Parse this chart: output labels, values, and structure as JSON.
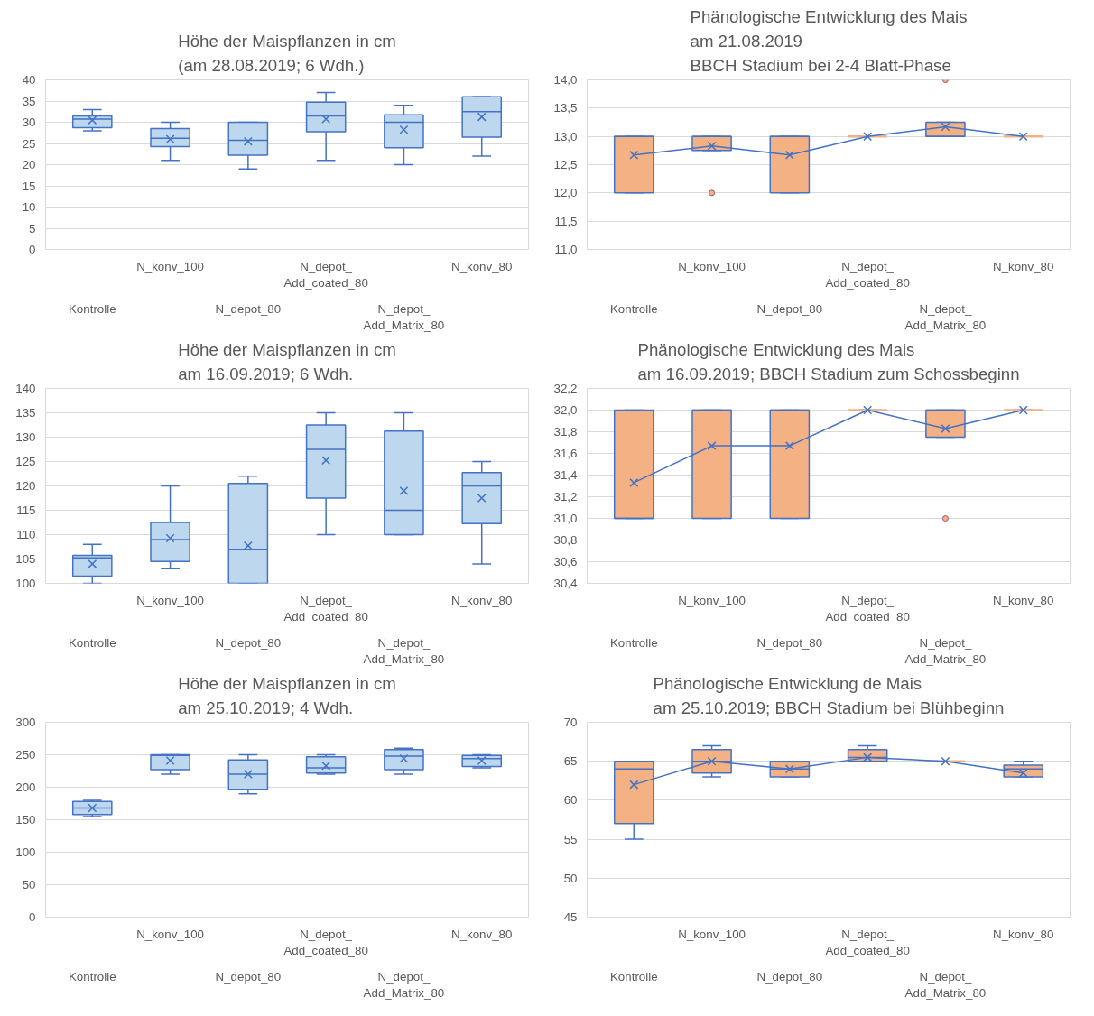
{
  "chart_data": [
    {
      "type": "box",
      "title": "Höhe der Maispflanzen in cm\n(am 28.08.2019;  6 Wdh.)",
      "categories": [
        "Kontrolle",
        "N_konv_100",
        "N_depot_80",
        "N_depot_\nAdd_coated_80",
        "N_depot_\nAdd_Matrix_80",
        "N_konv_80"
      ],
      "ylim": [
        0,
        40
      ],
      "yticks": [
        0,
        5,
        10,
        15,
        20,
        25,
        30,
        35,
        40
      ],
      "grid": "y",
      "marker": "cross",
      "series": [
        {
          "type": "box",
          "color": "#bdd7ee",
          "boxes": [
            {
              "low": 28,
              "q1": 28.75,
              "median": 30.75,
              "q3": 31.5,
              "high": 33,
              "mean": 30.5
            },
            {
              "low": 21,
              "q1": 24.25,
              "median": 26.25,
              "q3": 28.5,
              "high": 30,
              "mean": 26
            },
            {
              "low": 19,
              "q1": 22.25,
              "median": 25.75,
              "q3": 30,
              "high": 30,
              "mean": 25.5
            },
            {
              "low": 21,
              "q1": 27.75,
              "median": 31.5,
              "q3": 34.75,
              "high": 37,
              "mean": 30.75
            },
            {
              "low": 20,
              "q1": 24,
              "median": 30,
              "q3": 31.75,
              "high": 34,
              "mean": 28.25
            },
            {
              "low": 22,
              "q1": 26.5,
              "median": 32.5,
              "q3": 36,
              "high": 36,
              "mean": 31.25
            }
          ]
        }
      ]
    },
    {
      "type": "box",
      "title": "Phänologische Entwicklung des Mais\nam 21.08.2019\nBBCH Stadium bei 2-4 Blatt-Phase",
      "categories": [
        "Kontrolle",
        "N_konv_100",
        "N_depot_80",
        "N_depot_\nAdd_coated_80",
        "N_depot_\nAdd_Matrix_80",
        "N_konv_80"
      ],
      "ylim": [
        11,
        14
      ],
      "yticks": [
        {
          "value": 11,
          "label": "11,0"
        },
        {
          "value": 11.5,
          "label": "11,5"
        },
        {
          "value": 12,
          "label": "12,0"
        },
        {
          "value": 12.5,
          "label": "12,5"
        },
        {
          "value": 13,
          "label": "13,0"
        },
        {
          "value": 13.5,
          "label": "13,5"
        },
        {
          "value": 14,
          "label": "14,0"
        }
      ],
      "grid": "y",
      "marker": "cross",
      "series": [
        {
          "type": "box",
          "color": "#f4b183",
          "boxes": [
            {
              "low": 12,
              "q1": 12,
              "median": 13,
              "q3": 13,
              "high": 13,
              "mean": 12.67
            },
            {
              "low": 12.75,
              "q1": 12.75,
              "median": 13,
              "q3": 13,
              "high": 13,
              "mean": 12.83,
              "outliers": [
                12
              ]
            },
            {
              "low": 12,
              "q1": 12,
              "median": 13,
              "q3": 13,
              "high": 13,
              "mean": 12.67
            },
            {
              "low": 13,
              "q1": 13,
              "median": 13,
              "q3": 13,
              "high": 13,
              "mean": 13
            },
            {
              "low": 13,
              "q1": 13,
              "median": 13,
              "q3": 13.25,
              "high": 13.25,
              "mean": 13.17,
              "outliers": [
                14
              ]
            },
            {
              "low": 13,
              "q1": 13,
              "median": 13,
              "q3": 13,
              "high": 13,
              "mean": 13
            }
          ]
        },
        {
          "type": "line",
          "color": "#4472c4",
          "marker": "none",
          "values": [
            12.67,
            12.83,
            12.67,
            13,
            13.17,
            13
          ]
        }
      ]
    },
    {
      "type": "box",
      "title": "Höhe der Maispflanzen in cm\nam 16.09.2019; 6 Wdh.",
      "categories": [
        "Kontrolle",
        "N_konv_100",
        "N_depot_80",
        "N_depot_\nAdd_coated_80",
        "N_depot_\nAdd_Matrix_80",
        "N_konv_80"
      ],
      "ylim": [
        100,
        140
      ],
      "yticks": [
        100,
        105,
        110,
        115,
        120,
        125,
        130,
        135,
        140
      ],
      "grid": "y",
      "marker": "cross",
      "series": [
        {
          "type": "box",
          "color": "#bdd7ee",
          "boxes": [
            {
              "low": 100,
              "q1": 101.5,
              "median": 105.25,
              "q3": 105.75,
              "high": 108,
              "mean": 104
            },
            {
              "low": 103,
              "q1": 104.5,
              "median": 109,
              "q3": 112.5,
              "high": 120,
              "mean": 109.25
            },
            {
              "low": 100,
              "q1": 100,
              "median": 107,
              "q3": 120.5,
              "high": 122,
              "mean": 107.75
            },
            {
              "low": 110,
              "q1": 117.5,
              "median": 127.5,
              "q3": 132.5,
              "high": 135,
              "mean": 125.25
            },
            {
              "low": 110,
              "q1": 110,
              "median": 115,
              "q3": 131.25,
              "high": 135,
              "mean": 119
            },
            {
              "low": 104,
              "q1": 112.25,
              "median": 120,
              "q3": 122.75,
              "high": 125,
              "mean": 117.5
            }
          ]
        }
      ]
    },
    {
      "type": "box",
      "title": "Phänologische Entwicklung des Mais\nam 16.09.2019; BBCH Stadium zum Schossbeginn",
      "categories": [
        "Kontrolle",
        "N_konv_100",
        "N_depot_80",
        "N_depot_\nAdd_coated_80",
        "N_depot_\nAdd_Matrix_80",
        "N_konv_80"
      ],
      "ylim": [
        30.4,
        32.2
      ],
      "yticks": [
        {
          "value": 30.4,
          "label": "30,4"
        },
        {
          "value": 30.6,
          "label": "30,6"
        },
        {
          "value": 30.8,
          "label": "30,8"
        },
        {
          "value": 31,
          "label": "31,0"
        },
        {
          "value": 31.2,
          "label": "31,2"
        },
        {
          "value": 31.4,
          "label": "31,4"
        },
        {
          "value": 31.6,
          "label": "31,6"
        },
        {
          "value": 31.8,
          "label": "31,8"
        },
        {
          "value": 32,
          "label": "32,0"
        },
        {
          "value": 32.2,
          "label": "32,2"
        }
      ],
      "grid": "y",
      "marker": "cross",
      "series": [
        {
          "type": "box",
          "color": "#f4b183",
          "boxes": [
            {
              "low": 31,
              "q1": 31,
              "median": 31,
              "q3": 32,
              "high": 32,
              "mean": 31.33
            },
            {
              "low": 31,
              "q1": 31,
              "median": 32,
              "q3": 32,
              "high": 32,
              "mean": 31.67
            },
            {
              "low": 31,
              "q1": 31,
              "median": 32,
              "q3": 32,
              "high": 32,
              "mean": 31.67
            },
            {
              "low": 32,
              "q1": 32,
              "median": 32,
              "q3": 32,
              "high": 32,
              "mean": 32
            },
            {
              "low": 31.75,
              "q1": 31.75,
              "median": 32,
              "q3": 32,
              "high": 32,
              "mean": 31.83,
              "outliers": [
                31
              ]
            },
            {
              "low": 32,
              "q1": 32,
              "median": 32,
              "q3": 32,
              "high": 32,
              "mean": 32
            }
          ]
        },
        {
          "type": "line",
          "color": "#4472c4",
          "marker": "none",
          "values": [
            31.33,
            31.67,
            31.67,
            32,
            31.83,
            32
          ]
        }
      ]
    },
    {
      "type": "box",
      "title": "Höhe der Maispflanzen in cm\nam 25.10.2019; 4 Wdh.",
      "categories": [
        "Kontrolle",
        "N_konv_100",
        "N_depot_80",
        "N_depot_\nAdd_coated_80",
        "N_depot_\nAdd_Matrix_80",
        "N_konv_80"
      ],
      "ylim": [
        0,
        300
      ],
      "yticks": [
        0,
        50,
        100,
        150,
        200,
        250,
        300
      ],
      "grid": "y",
      "marker": "cross",
      "series": [
        {
          "type": "box",
          "color": "#bdd7ee",
          "boxes": [
            {
              "low": 155,
              "q1": 158,
              "median": 168,
              "q3": 178,
              "high": 180,
              "mean": 168
            },
            {
              "low": 220,
              "q1": 227,
              "median": 249,
              "q3": 250,
              "high": 250,
              "mean": 241
            },
            {
              "low": 190,
              "q1": 197,
              "median": 220,
              "q3": 242,
              "high": 250,
              "mean": 220
            },
            {
              "low": 220,
              "q1": 222,
              "median": 230,
              "q3": 247,
              "high": 250,
              "mean": 233
            },
            {
              "low": 220,
              "q1": 227,
              "median": 248,
              "q3": 258,
              "high": 260,
              "mean": 244
            },
            {
              "low": 230,
              "q1": 232,
              "median": 244,
              "q3": 249,
              "high": 250,
              "mean": 241
            }
          ]
        }
      ]
    },
    {
      "type": "box",
      "title": "Phänologische Entwicklung de Mais\nam 25.10.2019; BBCH Stadium bei Blühbeginn",
      "categories": [
        "Kontrolle",
        "N_konv_100",
        "N_depot_80",
        "N_depot_\nAdd_coated_80",
        "N_depot_\nAdd_Matrix_80",
        "N_konv_80"
      ],
      "ylim": [
        45,
        70
      ],
      "yticks": [
        45,
        50,
        55,
        60,
        65,
        70
      ],
      "grid": "y",
      "marker": "cross",
      "series": [
        {
          "type": "box",
          "color": "#f4b183",
          "boxes": [
            {
              "low": 55,
              "q1": 57,
              "median": 64,
              "q3": 65,
              "high": 65,
              "mean": 62
            },
            {
              "low": 63,
              "q1": 63.5,
              "median": 65,
              "q3": 66.5,
              "high": 67,
              "mean": 65
            },
            {
              "low": 63,
              "q1": 63,
              "median": 64,
              "q3": 65,
              "high": 65,
              "mean": 64
            },
            {
              "low": 65,
              "q1": 65,
              "median": 65.5,
              "q3": 66.5,
              "high": 67,
              "mean": 65.5
            },
            {
              "low": 65,
              "q1": 65,
              "median": 65,
              "q3": 65,
              "high": 65,
              "mean": 65
            },
            {
              "low": 63,
              "q1": 63,
              "median": 64,
              "q3": 64.5,
              "high": 65,
              "mean": 63.5
            }
          ]
        },
        {
          "type": "line",
          "color": "#4472c4",
          "marker": "none",
          "values": [
            62,
            65,
            64,
            65.5,
            65,
            63.5
          ]
        }
      ]
    }
  ]
}
